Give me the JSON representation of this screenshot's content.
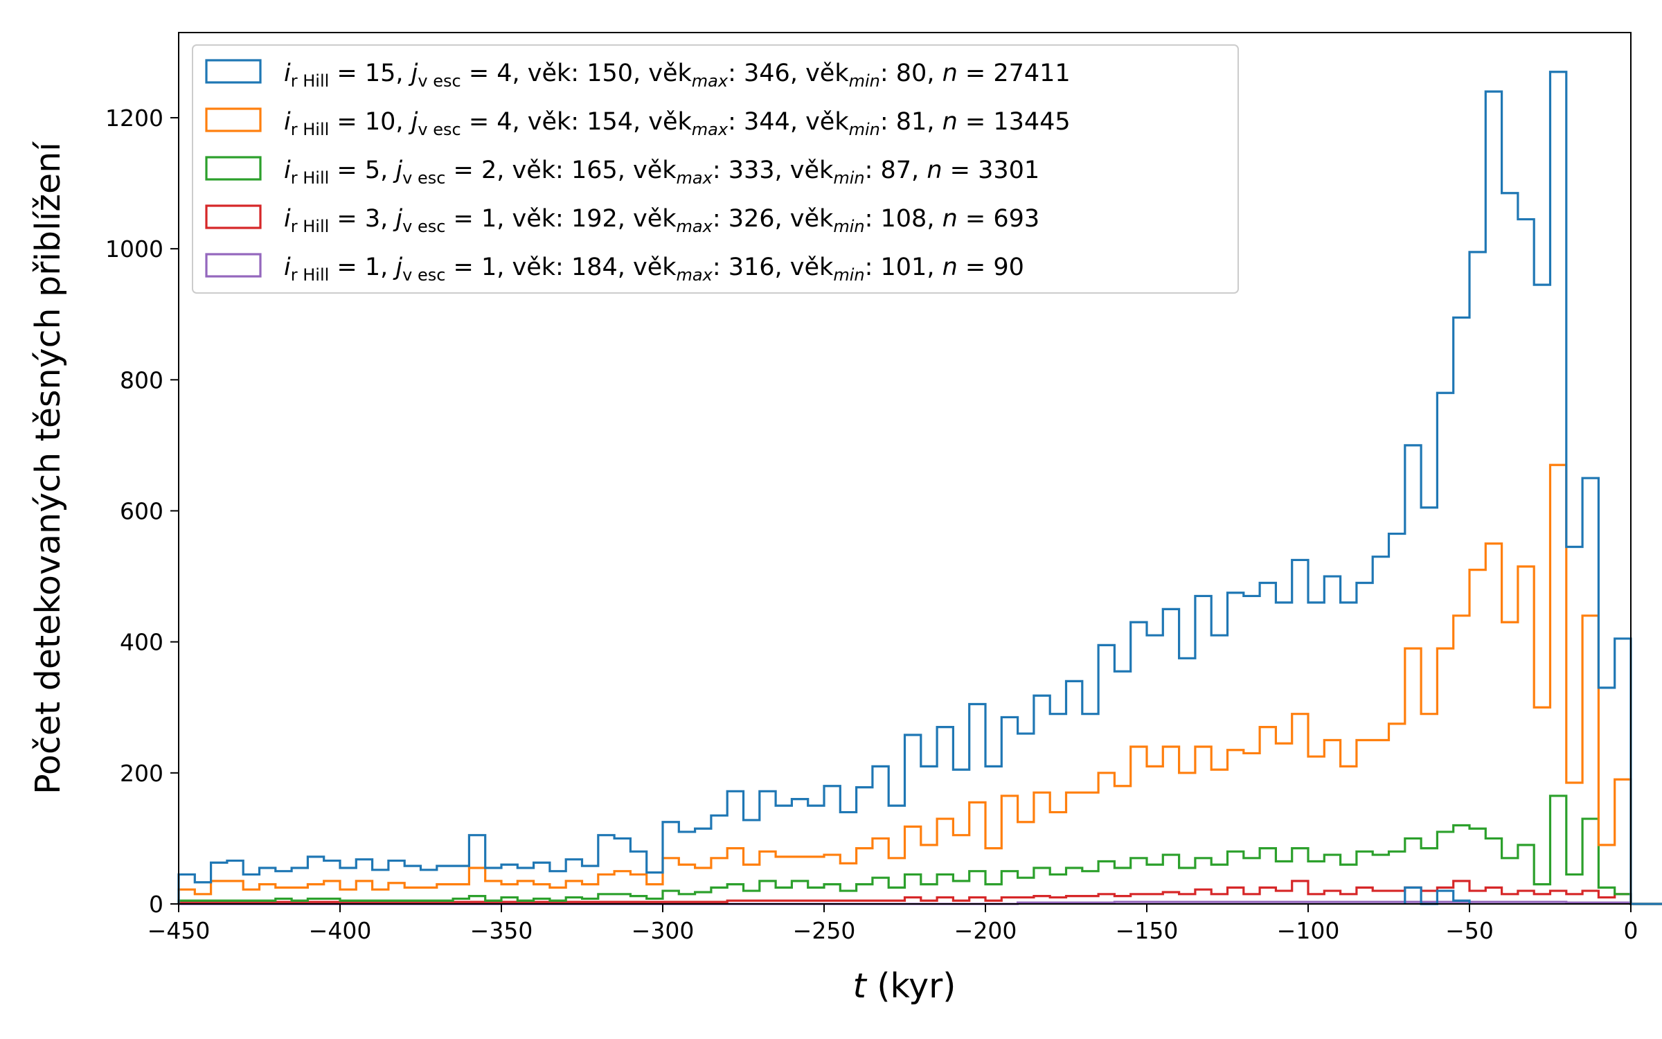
{
  "chart_data": {
    "type": "histogram",
    "xlabel_var": "t",
    "xlabel_unit": " (kyr)",
    "ylabel": "Počet detekovaných těsných přiblížení",
    "xlim": [
      -450,
      0
    ],
    "ylim": [
      0,
      1330
    ],
    "xticks": [
      -450,
      -400,
      -350,
      -300,
      -250,
      -200,
      -150,
      -100,
      -50,
      0
    ],
    "xtick_labels": [
      "−450",
      "−400",
      "−350",
      "−300",
      "−250",
      "−200",
      "−150",
      "−100",
      "−50",
      "0"
    ],
    "yticks": [
      0,
      200,
      400,
      600,
      800,
      1000,
      1200
    ],
    "ytick_labels": [
      "0",
      "200",
      "400",
      "600",
      "800",
      "1000",
      "1200"
    ],
    "grid": false,
    "legend_position": "top-left",
    "bin_start": -450,
    "bin_width": 5,
    "series": [
      {
        "color": "#1f77b4",
        "legend": {
          "i_sub": "r Hill",
          "i_val": "15",
          "j_sub": "v esc",
          "j_val": "4",
          "age": "150",
          "age_max": "346",
          "age_min": "80",
          "n": "27411"
        },
        "values": [
          45,
          33,
          63,
          66,
          45,
          55,
          50,
          55,
          72,
          66,
          55,
          68,
          52,
          66,
          58,
          52,
          58,
          58,
          105,
          55,
          60,
          55,
          63,
          50,
          68,
          58,
          105,
          100,
          80,
          48,
          125,
          110,
          115,
          135,
          172,
          128,
          172,
          150,
          160,
          150,
          180,
          140,
          178,
          210,
          150,
          258,
          210,
          270,
          205,
          305,
          210,
          285,
          260,
          318,
          290,
          340,
          290,
          395,
          355,
          430,
          410,
          450,
          375,
          470,
          410,
          475,
          470,
          490,
          460,
          525,
          460,
          500,
          460,
          490,
          530,
          565,
          700,
          605,
          780,
          895,
          995,
          1240,
          1085,
          1045,
          945,
          1270,
          545,
          650,
          330,
          405,
          0,
          0,
          0,
          0,
          0,
          0,
          0,
          0,
          0,
          0
        ]
      },
      {
        "color": "#ff7f0e",
        "legend": {
          "i_sub": "r Hill",
          "i_val": "10",
          "j_sub": "v esc",
          "j_val": "4",
          "age": "154",
          "age_max": "344",
          "age_min": "81",
          "n": "13445"
        },
        "values": [
          22,
          15,
          35,
          35,
          22,
          30,
          25,
          25,
          30,
          35,
          22,
          35,
          22,
          32,
          25,
          25,
          30,
          30,
          55,
          35,
          30,
          35,
          30,
          25,
          35,
          30,
          45,
          50,
          45,
          30,
          70,
          60,
          55,
          70,
          85,
          60,
          80,
          72,
          72,
          72,
          75,
          62,
          85,
          100,
          70,
          118,
          90,
          130,
          105,
          155,
          85,
          165,
          125,
          170,
          140,
          170,
          170,
          200,
          180,
          240,
          210,
          240,
          200,
          240,
          205,
          235,
          230,
          270,
          245,
          290,
          225,
          250,
          210,
          250,
          250,
          275,
          390,
          290,
          390,
          440,
          510,
          550,
          430,
          515,
          300,
          670,
          185,
          440,
          90,
          190,
          0,
          0,
          0,
          0,
          0,
          0,
          0,
          0,
          0,
          0
        ]
      },
      {
        "color": "#2ca02c",
        "legend": {
          "i_sub": "r Hill",
          "i_val": " 5",
          "j_sub": "v esc",
          "j_val": "2",
          "age": "165",
          "age_max": "333",
          "age_min": "87",
          "n": "3301"
        },
        "values": [
          5,
          5,
          5,
          5,
          5,
          5,
          8,
          5,
          8,
          8,
          5,
          5,
          5,
          5,
          5,
          5,
          5,
          8,
          12,
          5,
          10,
          5,
          8,
          5,
          10,
          8,
          15,
          15,
          12,
          8,
          20,
          15,
          18,
          25,
          30,
          20,
          35,
          25,
          35,
          25,
          30,
          20,
          30,
          40,
          25,
          45,
          30,
          45,
          35,
          50,
          30,
          50,
          40,
          55,
          45,
          55,
          50,
          65,
          55,
          70,
          60,
          75,
          55,
          70,
          60,
          80,
          70,
          85,
          65,
          85,
          65,
          75,
          60,
          80,
          75,
          80,
          100,
          85,
          110,
          120,
          115,
          100,
          70,
          90,
          30,
          165,
          45,
          130,
          25,
          15,
          0,
          0,
          0,
          0,
          0,
          0,
          0,
          0,
          0,
          0
        ]
      },
      {
        "color": "#d62728",
        "legend": {
          "i_sub": "r Hill",
          "i_val": " 3",
          "j_sub": "v esc",
          "j_val": "1",
          "age": "192",
          "age_max": "326",
          "age_min": "108",
          "n": "693"
        },
        "values": [
          3,
          3,
          3,
          3,
          3,
          3,
          3,
          3,
          3,
          3,
          3,
          3,
          3,
          3,
          3,
          3,
          3,
          3,
          3,
          3,
          3,
          3,
          3,
          3,
          3,
          3,
          3,
          3,
          3,
          3,
          3,
          3,
          3,
          3,
          5,
          5,
          5,
          5,
          5,
          5,
          5,
          5,
          5,
          5,
          5,
          10,
          5,
          10,
          5,
          10,
          5,
          10,
          10,
          12,
          10,
          12,
          12,
          15,
          12,
          15,
          15,
          18,
          15,
          22,
          15,
          25,
          15,
          25,
          20,
          35,
          15,
          20,
          15,
          25,
          20,
          20,
          25,
          20,
          25,
          35,
          20,
          25,
          15,
          20,
          15,
          20,
          15,
          20,
          10,
          15,
          0,
          0,
          0,
          0,
          0,
          0,
          0,
          0,
          0,
          0
        ]
      },
      {
        "color": "#9467bd",
        "legend": {
          "i_sub": "r Hill",
          "i_val": " 1",
          "j_sub": "v esc",
          "j_val": "1",
          "age": "184",
          "age_max": "316",
          "age_min": "101",
          "n": "90"
        },
        "values": [
          0,
          0,
          0,
          0,
          0,
          0,
          0,
          0,
          0,
          0,
          0,
          0,
          0,
          0,
          0,
          0,
          0,
          0,
          0,
          0,
          0,
          0,
          0,
          0,
          0,
          0,
          0,
          0,
          0,
          0,
          0,
          0,
          0,
          0,
          0,
          0,
          0,
          0,
          0,
          0,
          0,
          0,
          0,
          0,
          0,
          0,
          0,
          0,
          0,
          0,
          0,
          0,
          2,
          2,
          2,
          2,
          2,
          2,
          3,
          3,
          3,
          3,
          3,
          3,
          3,
          3,
          3,
          3,
          3,
          3,
          3,
          3,
          3,
          3,
          3,
          3,
          3,
          3,
          3,
          3,
          3,
          3,
          3,
          3,
          3,
          3,
          2,
          2,
          2,
          2,
          0,
          0,
          0,
          0,
          0,
          0,
          0,
          0,
          0,
          0
        ]
      }
    ],
    "tail": {
      "color": "#1f77b4",
      "values": [
        25,
        0,
        20,
        5
      ],
      "bin_start": -70,
      "bin_width": 5
    }
  }
}
